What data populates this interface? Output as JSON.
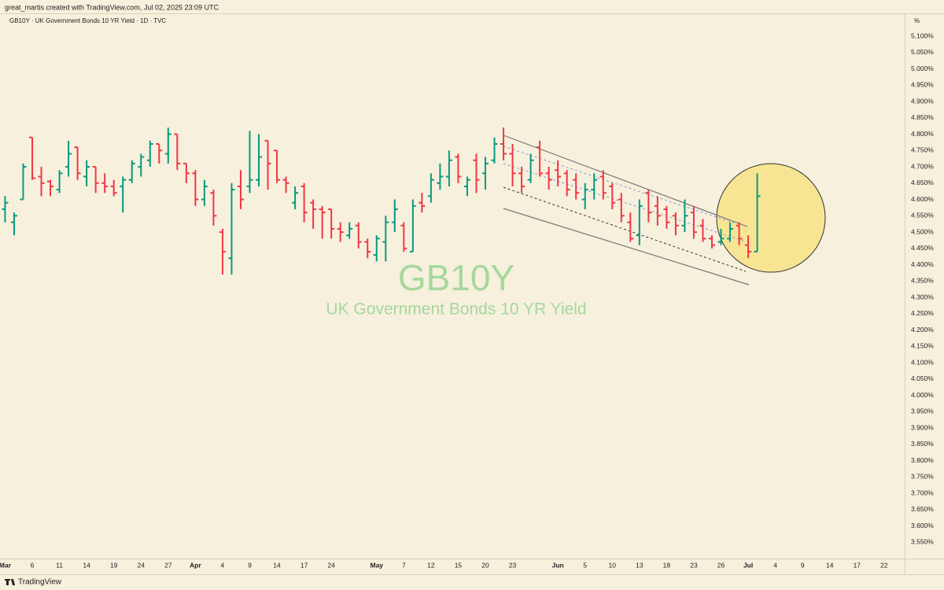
{
  "chart_data": {
    "type": "ohlc",
    "attribution": "great_martis created with TradingView.com, Jul 02, 2025 23:09 UTC",
    "legend": "GB10Y · UK Government Bonds 10 YR Yield · 1D · TVC",
    "watermark_symbol": "GB10Y",
    "watermark_name": "UK Government Bonds 10 YR Yield",
    "y_unit": "%",
    "brand": "TradingView",
    "up_color": "#089981",
    "down_color": "#f23645",
    "categories": [
      "Mar",
      null,
      null,
      "6",
      null,
      null,
      "11",
      null,
      null,
      "14",
      null,
      null,
      "19",
      null,
      null,
      "24",
      null,
      null,
      "27",
      null,
      null,
      "Apr",
      null,
      null,
      "4",
      null,
      null,
      "9",
      null,
      null,
      "14",
      null,
      null,
      "17",
      null,
      null,
      "24",
      null,
      null,
      null,
      null,
      "May",
      null,
      null,
      "7",
      null,
      null,
      "12",
      null,
      null,
      "15",
      null,
      null,
      "20",
      null,
      null,
      "23",
      null,
      null,
      null,
      null,
      "Jun",
      null,
      null,
      "5",
      null,
      null,
      "10",
      null,
      null,
      "13",
      null,
      null,
      "18",
      null,
      null,
      "23",
      null,
      null,
      "26",
      null,
      null,
      "Jul",
      null,
      null,
      "4",
      null,
      null,
      "9",
      null,
      null,
      "14",
      null,
      null,
      "17",
      null,
      null,
      "22"
    ],
    "open": [
      4.57,
      4.53,
      4.6,
      4.79,
      4.67,
      4.655,
      4.63,
      4.7,
      4.76,
      4.67,
      4.7,
      4.65,
      4.64,
      4.64,
      4.66,
      4.7,
      4.72,
      4.77,
      4.74,
      4.8,
      4.71,
      4.68,
      4.6,
      4.62,
      4.5,
      4.42,
      4.64,
      4.64,
      4.66,
      4.78,
      4.75,
      4.66,
      4.59,
      4.64,
      4.59,
      4.57,
      4.57,
      4.51,
      4.49,
      4.52,
      4.47,
      4.43,
      4.47,
      4.53,
      4.52,
      4.44,
      4.59,
      4.61,
      4.65,
      4.67,
      4.73,
      4.64,
      4.72,
      4.68,
      4.72,
      4.77,
      4.74,
      4.68,
      4.66,
      4.76,
      4.68,
      4.69,
      4.68,
      4.66,
      4.6,
      4.63,
      4.67,
      4.64,
      4.6,
      4.53,
      4.49,
      4.62,
      4.58,
      4.57,
      4.55,
      4.52,
      4.56,
      4.52,
      4.48,
      4.47,
      4.48,
      4.52,
      4.46,
      4.44,
      null,
      null,
      null,
      null,
      null,
      null,
      null,
      null,
      null,
      null,
      null,
      null,
      null,
      null
    ],
    "high": [
      4.61,
      4.56,
      4.71,
      4.79,
      4.7,
      4.66,
      4.69,
      4.78,
      4.76,
      4.72,
      4.7,
      4.68,
      4.66,
      4.67,
      4.72,
      4.74,
      4.78,
      4.77,
      4.82,
      4.8,
      4.71,
      4.69,
      4.66,
      4.63,
      4.51,
      4.65,
      4.69,
      4.81,
      4.8,
      4.78,
      4.75,
      4.67,
      4.64,
      4.65,
      4.6,
      4.58,
      4.57,
      4.53,
      4.53,
      4.53,
      4.48,
      4.49,
      4.55,
      4.6,
      4.53,
      4.6,
      4.62,
      4.68,
      4.71,
      4.75,
      4.74,
      4.67,
      4.74,
      4.73,
      4.79,
      4.82,
      4.77,
      4.7,
      4.74,
      4.78,
      4.7,
      4.72,
      4.69,
      4.68,
      4.65,
      4.68,
      4.69,
      4.65,
      4.62,
      4.56,
      4.6,
      4.63,
      4.61,
      4.58,
      4.56,
      4.6,
      4.58,
      4.54,
      4.49,
      4.51,
      4.53,
      4.53,
      4.49,
      4.68,
      null,
      null,
      null,
      null,
      null,
      null,
      null,
      null,
      null,
      null,
      null,
      null,
      null,
      null
    ],
    "low": [
      4.53,
      4.49,
      4.6,
      4.66,
      4.61,
      4.61,
      4.62,
      4.67,
      4.66,
      4.64,
      4.62,
      4.62,
      4.61,
      4.56,
      4.65,
      4.67,
      4.7,
      4.71,
      4.71,
      4.69,
      4.65,
      4.58,
      4.58,
      4.52,
      4.37,
      4.37,
      4.57,
      4.62,
      4.64,
      4.63,
      4.65,
      4.62,
      4.57,
      4.53,
      4.51,
      4.48,
      4.48,
      4.47,
      4.48,
      4.45,
      4.42,
      4.41,
      4.41,
      4.5,
      4.44,
      4.44,
      4.56,
      4.59,
      4.63,
      4.64,
      4.65,
      4.61,
      4.62,
      4.63,
      4.71,
      4.72,
      4.64,
      4.62,
      4.65,
      4.67,
      4.63,
      4.64,
      4.61,
      4.6,
      4.57,
      4.6,
      4.6,
      4.57,
      4.53,
      4.47,
      4.46,
      4.53,
      4.52,
      4.51,
      4.49,
      4.5,
      4.48,
      4.47,
      4.45,
      4.46,
      4.47,
      4.46,
      4.42,
      4.44,
      null,
      null,
      null,
      null,
      null,
      null,
      null,
      null,
      null,
      null,
      null,
      null,
      null,
      null
    ],
    "close": [
      4.59,
      4.55,
      4.7,
      4.665,
      4.65,
      4.64,
      4.68,
      4.74,
      4.68,
      4.7,
      4.65,
      4.64,
      4.62,
      4.66,
      4.71,
      4.73,
      4.77,
      4.75,
      4.8,
      4.71,
      4.68,
      4.6,
      4.64,
      4.55,
      4.44,
      4.63,
      4.6,
      4.66,
      4.73,
      4.71,
      4.66,
      4.65,
      4.62,
      4.56,
      4.57,
      4.56,
      4.51,
      4.5,
      4.51,
      4.47,
      4.44,
      4.48,
      4.53,
      4.57,
      4.45,
      4.58,
      4.58,
      4.66,
      4.67,
      4.72,
      4.67,
      4.66,
      4.66,
      4.71,
      4.77,
      4.74,
      4.68,
      4.64,
      4.72,
      4.68,
      4.66,
      4.67,
      4.63,
      4.62,
      4.63,
      4.66,
      4.62,
      4.59,
      4.55,
      4.48,
      4.58,
      4.56,
      4.55,
      4.53,
      4.52,
      4.55,
      4.5,
      4.48,
      4.46,
      4.48,
      4.51,
      4.48,
      4.44,
      4.61,
      null,
      null,
      null,
      null,
      null,
      null,
      null,
      null,
      null,
      null,
      null,
      null,
      null,
      null
    ],
    "ylim": [
      3.5,
      5.17
    ],
    "yticks": [
      {
        "value": 5.1,
        "label": "5.100%"
      },
      {
        "value": 5.05,
        "label": "5.050%"
      },
      {
        "value": 5.0,
        "label": "5.000%"
      },
      {
        "value": 4.95,
        "label": "4.950%"
      },
      {
        "value": 4.9,
        "label": "4.900%"
      },
      {
        "value": 4.85,
        "label": "4.850%"
      },
      {
        "value": 4.8,
        "label": "4.800%"
      },
      {
        "value": 4.75,
        "label": "4.750%"
      },
      {
        "value": 4.7,
        "label": "4.700%"
      },
      {
        "value": 4.65,
        "label": "4.650%"
      },
      {
        "value": 4.6,
        "label": "4.600%"
      },
      {
        "value": 4.55,
        "label": "4.550%"
      },
      {
        "value": 4.5,
        "label": "4.500%"
      },
      {
        "value": 4.45,
        "label": "4.450%"
      },
      {
        "value": 4.4,
        "label": "4.400%"
      },
      {
        "value": 4.35,
        "label": "4.350%"
      },
      {
        "value": 4.3,
        "label": "4.300%"
      },
      {
        "value": 4.25,
        "label": "4.250%"
      },
      {
        "value": 4.2,
        "label": "4.200%"
      },
      {
        "value": 4.15,
        "label": "4.150%"
      },
      {
        "value": 4.1,
        "label": "4.100%"
      },
      {
        "value": 4.05,
        "label": "4.050%"
      },
      {
        "value": 4.0,
        "label": "4.000%"
      },
      {
        "value": 3.95,
        "label": "3.950%"
      },
      {
        "value": 3.9,
        "label": "3.900%"
      },
      {
        "value": 3.85,
        "label": "3.850%"
      },
      {
        "value": 3.8,
        "label": "3.800%"
      },
      {
        "value": 3.75,
        "label": "3.750%"
      },
      {
        "value": 3.7,
        "label": "3.700%"
      },
      {
        "value": 3.65,
        "label": "3.650%"
      },
      {
        "value": 3.6,
        "label": "3.600%"
      },
      {
        "value": 3.55,
        "label": "3.550%"
      }
    ]
  }
}
